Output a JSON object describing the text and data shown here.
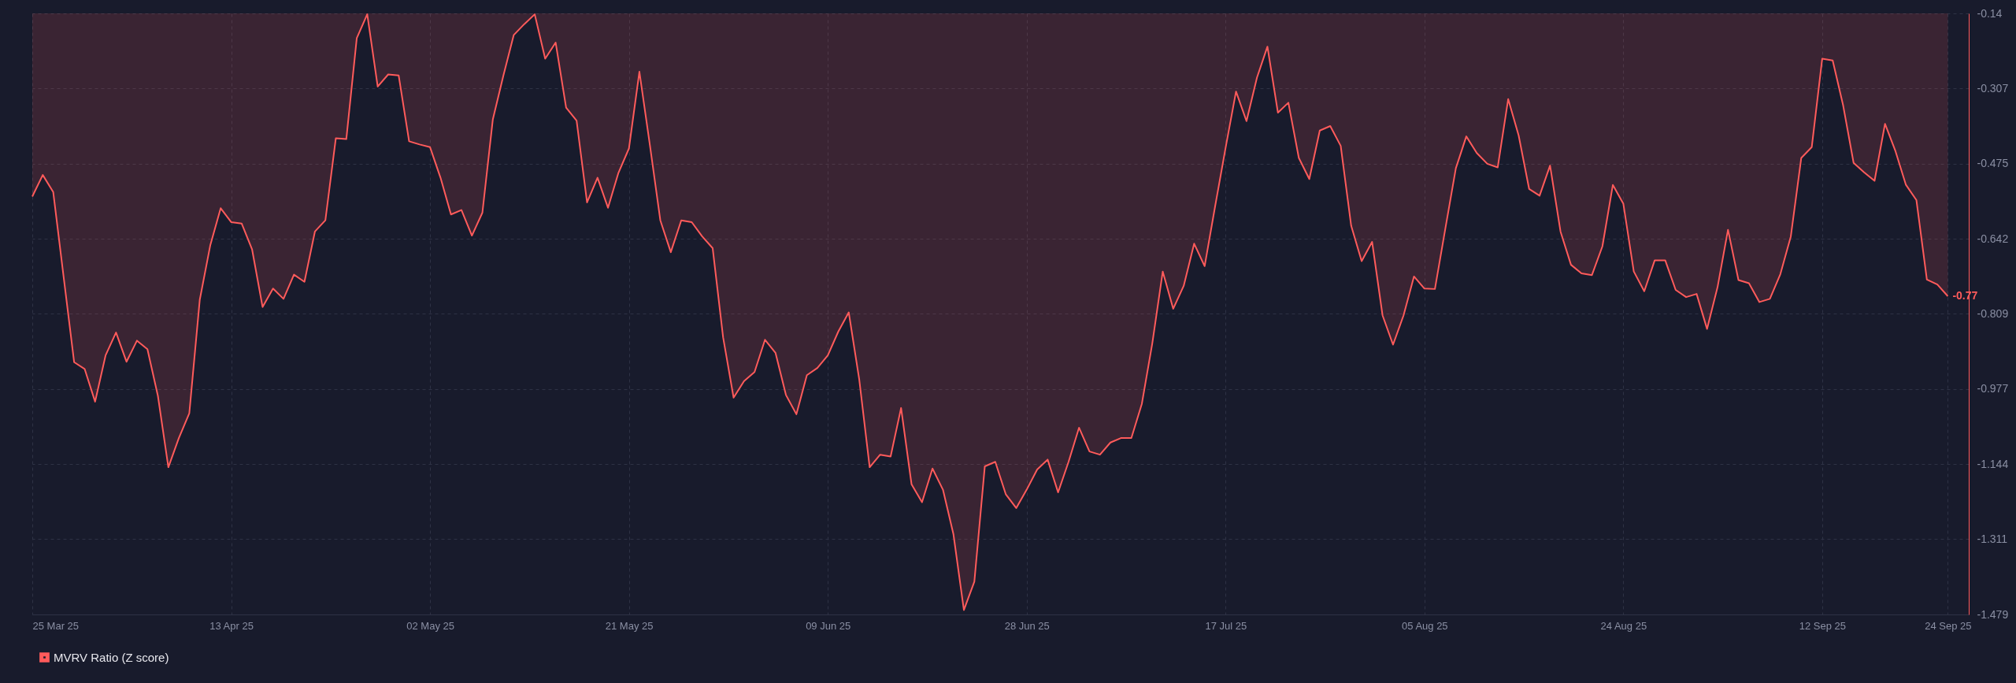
{
  "chart_data": {
    "type": "area",
    "x": [
      "2025-03-25",
      "2025-03-26",
      "2025-03-27",
      "2025-03-28",
      "2025-03-29",
      "2025-03-30",
      "2025-03-31",
      "2025-04-01",
      "2025-04-02",
      "2025-04-03",
      "2025-04-04",
      "2025-04-05",
      "2025-04-06",
      "2025-04-07",
      "2025-04-08",
      "2025-04-09",
      "2025-04-10",
      "2025-04-11",
      "2025-04-12",
      "2025-04-13",
      "2025-04-14",
      "2025-04-15",
      "2025-04-16",
      "2025-04-17",
      "2025-04-18",
      "2025-04-19",
      "2025-04-20",
      "2025-04-21",
      "2025-04-22",
      "2025-04-23",
      "2025-04-24",
      "2025-04-25",
      "2025-04-26",
      "2025-04-27",
      "2025-04-28",
      "2025-04-29",
      "2025-04-30",
      "2025-05-01",
      "2025-05-02",
      "2025-05-03",
      "2025-05-04",
      "2025-05-05",
      "2025-05-06",
      "2025-05-07",
      "2025-05-08",
      "2025-05-09",
      "2025-05-10",
      "2025-05-11",
      "2025-05-12",
      "2025-05-13",
      "2025-05-14",
      "2025-05-15",
      "2025-05-16",
      "2025-05-17",
      "2025-05-18",
      "2025-05-19",
      "2025-05-20",
      "2025-05-21",
      "2025-05-22",
      "2025-05-23",
      "2025-05-24",
      "2025-05-25",
      "2025-05-26",
      "2025-05-27",
      "2025-05-28",
      "2025-05-29",
      "2025-05-30",
      "2025-05-31",
      "2025-06-01",
      "2025-06-02",
      "2025-06-03",
      "2025-06-04",
      "2025-06-05",
      "2025-06-06",
      "2025-06-07",
      "2025-06-08",
      "2025-06-09",
      "2025-06-10",
      "2025-06-11",
      "2025-06-12",
      "2025-06-13",
      "2025-06-14",
      "2025-06-15",
      "2025-06-16",
      "2025-06-17",
      "2025-06-18",
      "2025-06-19",
      "2025-06-20",
      "2025-06-21",
      "2025-06-22",
      "2025-06-23",
      "2025-06-24",
      "2025-06-25",
      "2025-06-26",
      "2025-06-27",
      "2025-06-28",
      "2025-06-29",
      "2025-06-30",
      "2025-07-01",
      "2025-07-02",
      "2025-07-03",
      "2025-07-04",
      "2025-07-05",
      "2025-07-06",
      "2025-07-07",
      "2025-07-08",
      "2025-07-09",
      "2025-07-10",
      "2025-07-11",
      "2025-07-12",
      "2025-07-13",
      "2025-07-14",
      "2025-07-15",
      "2025-07-16",
      "2025-07-17",
      "2025-07-18",
      "2025-07-19",
      "2025-07-20",
      "2025-07-21",
      "2025-07-22",
      "2025-07-23",
      "2025-07-24",
      "2025-07-25",
      "2025-07-26",
      "2025-07-27",
      "2025-07-28",
      "2025-07-29",
      "2025-07-30",
      "2025-07-31",
      "2025-08-01",
      "2025-08-02",
      "2025-08-03",
      "2025-08-04",
      "2025-08-05",
      "2025-08-06",
      "2025-08-07",
      "2025-08-08",
      "2025-08-09",
      "2025-08-10",
      "2025-08-11",
      "2025-08-12",
      "2025-08-13",
      "2025-08-14",
      "2025-08-15",
      "2025-08-16",
      "2025-08-17",
      "2025-08-18",
      "2025-08-19",
      "2025-08-20",
      "2025-08-21",
      "2025-08-22",
      "2025-08-23",
      "2025-08-24",
      "2025-08-25",
      "2025-08-26",
      "2025-08-27",
      "2025-08-28",
      "2025-08-29",
      "2025-08-30",
      "2025-08-31",
      "2025-09-01",
      "2025-09-02",
      "2025-09-03",
      "2025-09-04",
      "2025-09-05",
      "2025-09-06",
      "2025-09-07",
      "2025-09-08",
      "2025-09-09",
      "2025-09-10",
      "2025-09-11",
      "2025-09-12",
      "2025-09-13",
      "2025-09-14",
      "2025-09-15",
      "2025-09-16",
      "2025-09-17",
      "2025-09-18",
      "2025-09-19",
      "2025-09-20",
      "2025-09-21",
      "2025-09-22",
      "2025-09-23",
      "2025-09-24"
    ],
    "series": [
      {
        "name": "MVRV Ratio (Z score)",
        "color": "#ff5b5b",
        "values": [
          -0.548,
          -0.5,
          -0.538,
          -0.728,
          -0.917,
          -0.932,
          -1.005,
          -0.902,
          -0.851,
          -0.916,
          -0.869,
          -0.888,
          -0.992,
          -1.151,
          -1.086,
          -1.031,
          -0.778,
          -0.657,
          -0.574,
          -0.605,
          -0.608,
          -0.666,
          -0.794,
          -0.753,
          -0.776,
          -0.722,
          -0.738,
          -0.626,
          -0.601,
          -0.418,
          -0.42,
          -0.195,
          -0.142,
          -0.303,
          -0.276,
          -0.278,
          -0.425,
          -0.432,
          -0.438,
          -0.506,
          -0.588,
          -0.578,
          -0.635,
          -0.584,
          -0.376,
          -0.279,
          -0.188,
          -0.164,
          -0.142,
          -0.241,
          -0.205,
          -0.35,
          -0.379,
          -0.561,
          -0.506,
          -0.573,
          -0.495,
          -0.441,
          -0.27,
          -0.433,
          -0.601,
          -0.672,
          -0.601,
          -0.605,
          -0.637,
          -0.663,
          -0.862,
          -0.996,
          -0.959,
          -0.939,
          -0.867,
          -0.896,
          -0.99,
          -1.033,
          -0.946,
          -0.93,
          -0.902,
          -0.849,
          -0.806,
          -0.955,
          -1.151,
          -1.123,
          -1.127,
          -1.019,
          -1.189,
          -1.229,
          -1.154,
          -1.201,
          -1.3,
          -1.469,
          -1.406,
          -1.149,
          -1.139,
          -1.211,
          -1.242,
          -1.201,
          -1.156,
          -1.134,
          -1.207,
          -1.139,
          -1.063,
          -1.116,
          -1.123,
          -1.096,
          -1.086,
          -1.086,
          -1.01,
          -0.875,
          -0.715,
          -0.798,
          -0.747,
          -0.653,
          -0.703,
          -0.57,
          -0.44,
          -0.314,
          -0.38,
          -0.283,
          -0.214,
          -0.361,
          -0.339,
          -0.462,
          -0.509,
          -0.401,
          -0.391,
          -0.435,
          -0.613,
          -0.692,
          -0.649,
          -0.813,
          -0.878,
          -0.813,
          -0.726,
          -0.753,
          -0.754,
          -0.619,
          -0.485,
          -0.414,
          -0.451,
          -0.475,
          -0.483,
          -0.331,
          -0.412,
          -0.531,
          -0.546,
          -0.479,
          -0.626,
          -0.7,
          -0.719,
          -0.723,
          -0.659,
          -0.522,
          -0.564,
          -0.715,
          -0.759,
          -0.69,
          -0.69,
          -0.756,
          -0.772,
          -0.765,
          -0.843,
          -0.75,
          -0.622,
          -0.734,
          -0.741,
          -0.783,
          -0.776,
          -0.721,
          -0.637,
          -0.462,
          -0.438,
          -0.241,
          -0.245,
          -0.345,
          -0.473,
          -0.494,
          -0.513,
          -0.386,
          -0.447,
          -0.522,
          -0.556,
          -0.733,
          -0.744,
          -0.77
        ]
      }
    ],
    "xlim": [
      "2025-03-25",
      "2025-09-26"
    ],
    "xticks": [
      {
        "value": "2025-03-25",
        "label": "25 Mar 25"
      },
      {
        "value": "2025-04-13",
        "label": "13 Apr 25"
      },
      {
        "value": "2025-05-02",
        "label": "02 May 25"
      },
      {
        "value": "2025-05-21",
        "label": "21 May 25"
      },
      {
        "value": "2025-06-09",
        "label": "09 Jun 25"
      },
      {
        "value": "2025-06-28",
        "label": "28 Jun 25"
      },
      {
        "value": "2025-07-17",
        "label": "17 Jul 25"
      },
      {
        "value": "2025-08-05",
        "label": "05 Aug 25"
      },
      {
        "value": "2025-08-24",
        "label": "24 Aug 25"
      },
      {
        "value": "2025-09-12",
        "label": "12 Sep 25"
      },
      {
        "value": "2025-09-24",
        "label": "24 Sep 25"
      }
    ],
    "ylim": [
      -1.479,
      -0.14
    ],
    "yticks": [
      -0.14,
      -0.307,
      -0.475,
      -0.642,
      -0.809,
      -0.977,
      -1.144,
      -1.311,
      -1.479
    ],
    "annotations": [
      {
        "text": "-0.77",
        "x": "2025-09-24",
        "y": -0.77
      }
    ],
    "grid": true,
    "legend": "bottom"
  }
}
